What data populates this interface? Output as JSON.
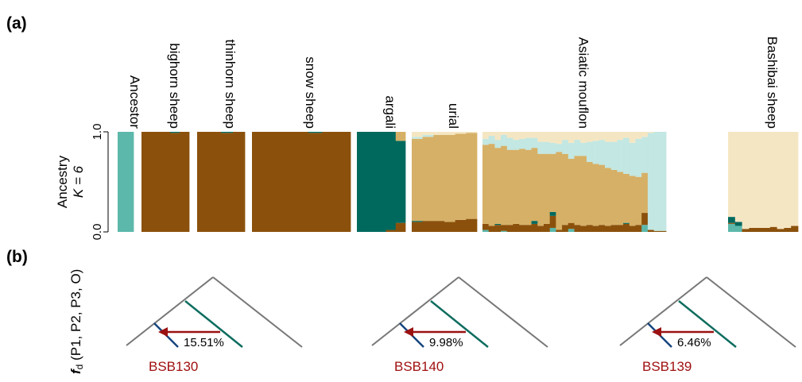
{
  "panels": {
    "a": "(a)",
    "b": "(b)"
  },
  "colors": {
    "c1": "#5cb8ab",
    "c2": "#8b510c",
    "c3": "#00695e",
    "c4": "#d6b066",
    "c5": "#c3e7e2",
    "c6": "#f5e6c3",
    "arrow": "#9b1111",
    "tree": "#777777",
    "branch_a": "#15457e",
    "branch_b": "#0e6d5f"
  },
  "chart_data": [
    {
      "type": "stacked bar (admixture)",
      "ylabel": "Ancestry",
      "ylabel2": "K = 6",
      "yticks": [
        "0.0",
        "1.0"
      ],
      "ylim": [
        0,
        1
      ],
      "components": [
        "c1",
        "c2",
        "c3",
        "c4",
        "c5",
        "c6"
      ],
      "groups": [
        {
          "name": "Ancestor",
          "n": 1,
          "samples": [
            [
              1,
              0,
              0,
              0,
              0,
              0
            ]
          ]
        },
        {
          "name": "bighorn sheep",
          "n": 5,
          "samples": [
            [
              0,
              1,
              0,
              0,
              0,
              0
            ],
            [
              0,
              1,
              0,
              0,
              0,
              0
            ],
            [
              0,
              1,
              0,
              0,
              0,
              0
            ],
            [
              0,
              0.99,
              0.01,
              0,
              0,
              0
            ],
            [
              0,
              1,
              0,
              0,
              0,
              0
            ]
          ]
        },
        {
          "name": "thinhorn sheep",
          "n": 4,
          "samples": [
            [
              0,
              1,
              0,
              0,
              0,
              0
            ],
            [
              0,
              1,
              0,
              0,
              0,
              0
            ],
            [
              0,
              0.99,
              0.01,
              0,
              0,
              0
            ],
            [
              0,
              1,
              0,
              0,
              0,
              0
            ]
          ]
        },
        {
          "name": "snow sheep",
          "n": 7,
          "samples": [
            [
              0,
              1,
              0,
              0,
              0,
              0
            ],
            [
              0,
              1,
              0,
              0,
              0,
              0
            ],
            [
              0,
              1,
              0,
              0,
              0,
              0
            ],
            [
              0,
              1,
              0,
              0,
              0,
              0
            ],
            [
              0,
              0.99,
              0.01,
              0,
              0,
              0
            ],
            [
              0,
              1,
              0,
              0,
              0,
              0
            ],
            [
              0,
              1,
              0,
              0,
              0,
              0
            ]
          ]
        },
        {
          "name": "argali",
          "n": 5,
          "samples": [
            [
              0,
              0,
              1,
              0,
              0,
              0
            ],
            [
              0,
              0,
              1,
              0,
              0,
              0
            ],
            [
              0,
              0,
              1,
              0,
              0,
              0
            ],
            [
              0,
              0.02,
              0.98,
              0,
              0,
              0
            ],
            [
              0,
              0.09,
              0.82,
              0.09,
              0,
              0
            ]
          ]
        },
        {
          "name": "urial",
          "n": 6,
          "samples": [
            [
              0,
              0.1,
              0.01,
              0.82,
              0.02,
              0.05
            ],
            [
              0,
              0.11,
              0,
              0.84,
              0.02,
              0.03
            ],
            [
              0,
              0.11,
              0,
              0.86,
              0,
              0.03
            ],
            [
              0,
              0.1,
              0,
              0.87,
              0,
              0.03
            ],
            [
              0,
              0.12,
              0,
              0.86,
              0,
              0.02
            ],
            [
              0,
              0.13,
              0,
              0.86,
              0,
              0.01
            ]
          ]
        },
        {
          "name": "Asiatic mouflon",
          "n": 30,
          "samples": [
            [
              0.02,
              0.06,
              0,
              0.79,
              0.06,
              0.07
            ],
            [
              0,
              0.06,
              0,
              0.82,
              0.08,
              0.04
            ],
            [
              0,
              0.07,
              0.01,
              0.76,
              0.08,
              0.08
            ],
            [
              0.01,
              0.06,
              0,
              0.79,
              0.11,
              0.03
            ],
            [
              0,
              0.07,
              0,
              0.75,
              0.12,
              0.06
            ],
            [
              0,
              0.08,
              0,
              0.74,
              0.1,
              0.08
            ],
            [
              0,
              0.07,
              0,
              0.76,
              0.1,
              0.07
            ],
            [
              0,
              0.07,
              0,
              0.75,
              0.12,
              0.06
            ],
            [
              0,
              0.08,
              0.03,
              0.73,
              0.1,
              0.06
            ],
            [
              0,
              0.06,
              0,
              0.72,
              0.12,
              0.1
            ],
            [
              0,
              0.08,
              0,
              0.7,
              0.12,
              0.1
            ],
            [
              0.04,
              0.12,
              0.04,
              0.58,
              0.11,
              0.11
            ],
            [
              0,
              0.02,
              0,
              0.78,
              0.08,
              0.12
            ],
            [
              0,
              0.07,
              0,
              0.71,
              0.14,
              0.08
            ],
            [
              0.03,
              0.06,
              0,
              0.64,
              0.16,
              0.11
            ],
            [
              0,
              0.07,
              0,
              0.69,
              0.16,
              0.08
            ],
            [
              0,
              0.06,
              0,
              0.7,
              0.13,
              0.11
            ],
            [
              0,
              0.07,
              0,
              0.63,
              0.2,
              0.1
            ],
            [
              0,
              0.06,
              0,
              0.62,
              0.23,
              0.09
            ],
            [
              0,
              0.07,
              0,
              0.6,
              0.25,
              0.08
            ],
            [
              0,
              0.06,
              0,
              0.58,
              0.26,
              0.1
            ],
            [
              0,
              0.07,
              0,
              0.55,
              0.28,
              0.1
            ],
            [
              0,
              0.07,
              0,
              0.53,
              0.32,
              0.08
            ],
            [
              0,
              0.08,
              0.01,
              0.49,
              0.36,
              0.06
            ],
            [
              0,
              0.06,
              0,
              0.5,
              0.33,
              0.11
            ],
            [
              0,
              0.07,
              0,
              0.48,
              0.38,
              0.07
            ],
            [
              0.07,
              0.12,
              0,
              0.4,
              0.36,
              0.05
            ],
            [
              0,
              0.02,
              0,
              0,
              0.97,
              0.01
            ],
            [
              0,
              0.01,
              0,
              0,
              0.99,
              0
            ],
            [
              0,
              0.01,
              0,
              0,
              0.99,
              0
            ]
          ]
        },
        {
          "name": "Bashibai sheep",
          "n": 10,
          "samples": [
            [
              0.08,
              0.01,
              0.06,
              0,
              0,
              0.85
            ],
            [
              0.06,
              0,
              0.04,
              0,
              0,
              0.9
            ],
            [
              0,
              0.03,
              0,
              0,
              0,
              0.97
            ],
            [
              0,
              0.04,
              0,
              0,
              0,
              0.96
            ],
            [
              0,
              0.04,
              0,
              0,
              0,
              0.96
            ],
            [
              0,
              0.04,
              0,
              0,
              0,
              0.96
            ],
            [
              0,
              0.05,
              0,
              0,
              0,
              0.95
            ],
            [
              0,
              0.03,
              0,
              0,
              0,
              0.97
            ],
            [
              0,
              0.04,
              0,
              0,
              0,
              0.96
            ],
            [
              0,
              0.06,
              0,
              0,
              0,
              0.94
            ]
          ]
        }
      ]
    },
    {
      "type": "introgression trees",
      "ylabel_bold": "f",
      "ylabel_sub": "d",
      "ylabel_rest": " (P1, P2, P3, O)",
      "trees": [
        {
          "sample": "BSB130",
          "fd": "15.51%"
        },
        {
          "sample": "BSB140",
          "fd": "9.98%"
        },
        {
          "sample": "BSB139",
          "fd": "6.46%"
        }
      ]
    }
  ]
}
